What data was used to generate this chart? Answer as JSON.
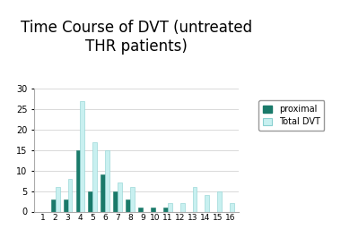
{
  "title": "Time Course of DVT (untreated\nTHR patients)",
  "categories": [
    1,
    2,
    3,
    4,
    5,
    6,
    7,
    8,
    9,
    10,
    11,
    12,
    13,
    14,
    15,
    16
  ],
  "proximal": [
    0,
    3,
    3,
    15,
    5,
    9,
    5,
    3,
    1,
    1,
    1,
    0,
    0,
    0,
    0,
    0
  ],
  "total_dvt": [
    0,
    6,
    8,
    27,
    17,
    15,
    7,
    6,
    0,
    0,
    2,
    2,
    6,
    4,
    5,
    2
  ],
  "proximal_color": "#1a7a6a",
  "total_dvt_color": "#c8f0f0",
  "total_dvt_edge": "#8ad0d0",
  "ylim": [
    0,
    30
  ],
  "yticks": [
    0,
    5,
    10,
    15,
    20,
    25,
    30
  ],
  "background_color": "#ffffff",
  "title_fontsize": 12,
  "legend_labels": [
    "proximal",
    "Total DVT"
  ],
  "bar_width": 0.35
}
